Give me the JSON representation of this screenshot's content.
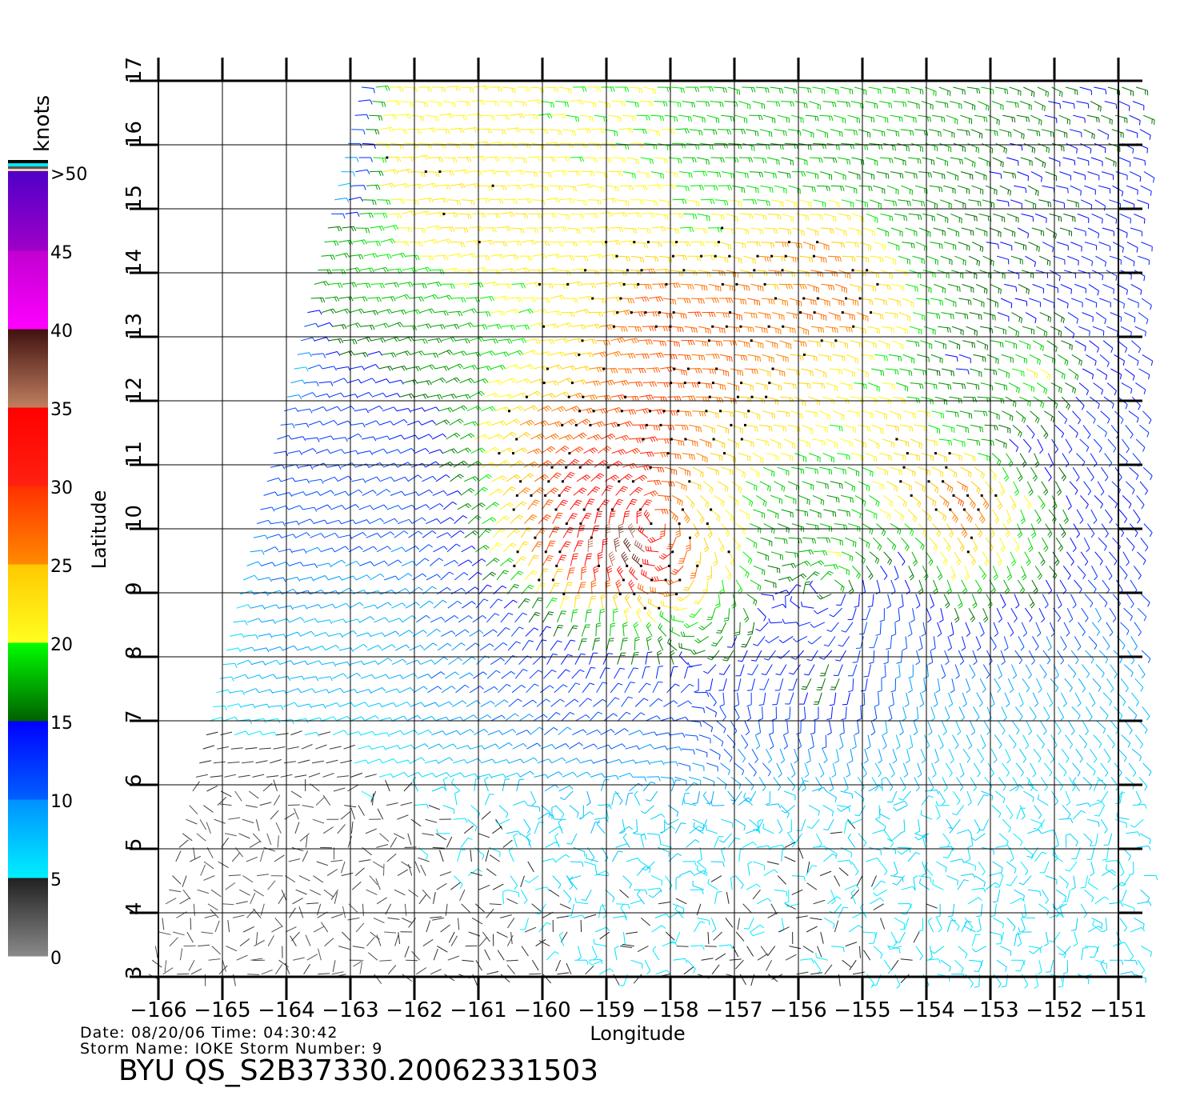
{
  "chart_data": {
    "type": "vector-field",
    "title": "BYU QS_S2B37330.20062331503",
    "xlabel": "Longitude",
    "ylabel": "Latitude",
    "xlim": [
      -166,
      -151
    ],
    "ylim": [
      3,
      17
    ],
    "xticks": [
      "-166",
      "-165",
      "-164",
      "-163",
      "-162",
      "-161",
      "-160",
      "-159",
      "-158",
      "-157",
      "-156",
      "-155",
      "-154",
      "-153",
      "-152",
      "-151"
    ],
    "yticks": [
      "3",
      "4",
      "5",
      "6",
      "7",
      "8",
      "9",
      "10",
      "11",
      "12",
      "13",
      "14",
      "15",
      "16",
      "17"
    ],
    "grid": true,
    "colorbar": {
      "label": "knots",
      "ticks": [
        "0",
        "5",
        "10",
        "15",
        "20",
        "25",
        "30",
        "35",
        "40",
        "45",
        ">50"
      ],
      "stops": [
        {
          "from": 0,
          "to": 5,
          "c1": "#8a8a8a",
          "c2": "#202020"
        },
        {
          "from": 5,
          "to": 10,
          "c1": "#00f0ff",
          "c2": "#0090ff"
        },
        {
          "from": 10,
          "to": 15,
          "c1": "#0060ff",
          "c2": "#0000ff"
        },
        {
          "from": 15,
          "to": 20,
          "c1": "#006000",
          "c2": "#00ff00"
        },
        {
          "from": 20,
          "to": 25,
          "c1": "#ffff20",
          "c2": "#ffc800"
        },
        {
          "from": 25,
          "to": 30,
          "c1": "#ff8a00",
          "c2": "#ff3000"
        },
        {
          "from": 30,
          "to": 35,
          "c1": "#ff2010",
          "c2": "#ff0000"
        },
        {
          "from": 35,
          "to": 40,
          "c1": "#c08060",
          "c2": "#401010"
        },
        {
          "from": 40,
          "to": 45,
          "c1": "#ff00ff",
          "c2": "#c000d0"
        },
        {
          "from": 45,
          "to": 50,
          "c1": "#a000c8",
          "c2": "#5000c8"
        }
      ]
    },
    "speed_grid_knots": {
      "lat_centers": [
        16.5,
        15.5,
        14.5,
        13.5,
        12.5,
        11.5,
        10.5,
        9.5,
        8.5,
        7.5,
        6.5,
        5.5,
        4.5,
        3.5
      ],
      "lon_centers": [
        -165.5,
        -164.5,
        -163.5,
        -162.5,
        -161.5,
        -160.5,
        -159.5,
        -158.5,
        -157.5,
        -156.5,
        -155.5,
        -154.5,
        -153.5,
        -152.5,
        -151.5
      ],
      "values": [
        [
          0,
          0,
          0,
          21,
          21,
          21,
          20,
          20,
          18,
          18,
          18,
          18,
          17,
          16,
          15
        ],
        [
          0,
          0,
          0,
          22,
          22,
          21,
          21,
          20,
          19,
          18,
          17,
          17,
          16,
          15,
          14
        ],
        [
          0,
          0,
          18,
          20,
          22,
          22,
          21,
          22,
          21,
          24,
          25,
          18,
          16,
          15,
          14
        ],
        [
          0,
          0,
          17,
          18,
          18,
          20,
          22,
          28,
          28,
          26,
          27,
          22,
          16,
          14,
          13
        ],
        [
          0,
          0,
          13,
          15,
          17,
          20,
          25,
          28,
          27,
          25,
          22,
          18,
          14,
          22,
          14
        ],
        [
          0,
          12,
          12,
          12,
          16,
          25,
          28,
          30,
          25,
          22,
          20,
          24,
          18,
          14,
          12
        ],
        [
          0,
          11,
          11,
          11,
          14,
          24,
          33,
          30,
          22,
          18,
          16,
          22,
          28,
          20,
          14
        ],
        [
          0,
          10,
          10,
          10,
          12,
          22,
          34,
          40,
          25,
          16,
          20,
          14,
          22,
          18,
          13
        ],
        [
          0,
          9,
          8,
          8,
          10,
          12,
          18,
          20,
          18,
          14,
          12,
          10,
          14,
          12,
          10
        ],
        [
          4,
          9,
          8,
          8,
          10,
          11,
          12,
          12,
          13,
          12,
          16,
          10,
          9,
          8,
          8
        ],
        [
          4,
          4,
          4,
          6,
          8,
          9,
          10,
          10,
          11,
          10,
          9,
          8,
          7,
          7,
          7
        ],
        [
          3,
          3,
          3,
          4,
          5,
          6,
          7,
          7,
          7,
          6,
          6,
          6,
          6,
          6,
          6
        ],
        [
          3,
          3,
          3,
          3,
          4,
          5,
          6,
          6,
          6,
          5,
          5,
          6,
          6,
          6,
          6
        ],
        [
          3,
          3,
          3,
          3,
          4,
          4,
          5,
          5,
          5,
          4,
          5,
          5,
          6,
          6,
          6
        ]
      ]
    }
  },
  "info": {
    "date_line": "Date: 08/20/06   Time: 04:30:42",
    "storm_line": "Storm  Name: IOKE   Storm  Number: 9",
    "file_title": "BYU  QS_S2B37330.20062331503"
  }
}
